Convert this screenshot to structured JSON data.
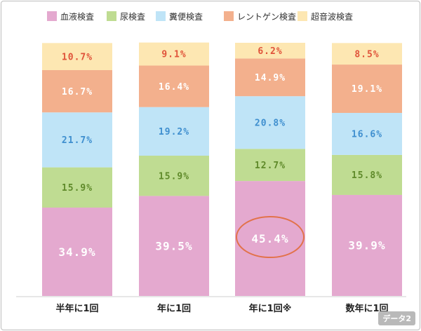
{
  "chart_data": {
    "type": "bar",
    "stacked": true,
    "percent": true,
    "categories": [
      "半年に1回",
      "年に1回",
      "年に1回※",
      "数年に1回"
    ],
    "series": [
      {
        "name": "血液検査",
        "color": "#e4a9cf",
        "label_color": "#ffffff",
        "values": [
          34.9,
          39.5,
          45.4,
          39.9
        ]
      },
      {
        "name": "尿検査",
        "color": "#bfdc92",
        "label_color": "#5f8a2a",
        "values": [
          15.9,
          15.9,
          12.7,
          15.8
        ]
      },
      {
        "name": "糞便検査",
        "color": "#bfe4f7",
        "label_color": "#3f8fcf",
        "values": [
          21.7,
          19.2,
          20.8,
          16.6
        ]
      },
      {
        "name": "レントゲン検査",
        "color": "#f3b08d",
        "label_color": "#ffffff",
        "values": [
          16.7,
          16.4,
          14.9,
          19.1
        ]
      },
      {
        "name": "超音波検査",
        "color": "#fde7b2",
        "label_color": "#e0533a",
        "values": [
          10.7,
          9.1,
          6.2,
          8.5
        ]
      }
    ],
    "unit": "%",
    "highlight": {
      "category": "年に1回※",
      "series": "血液検査",
      "color": "#e2724a"
    },
    "legend_position": "top",
    "grid": false,
    "ylim": [
      0,
      100
    ]
  },
  "badge": "データ2"
}
